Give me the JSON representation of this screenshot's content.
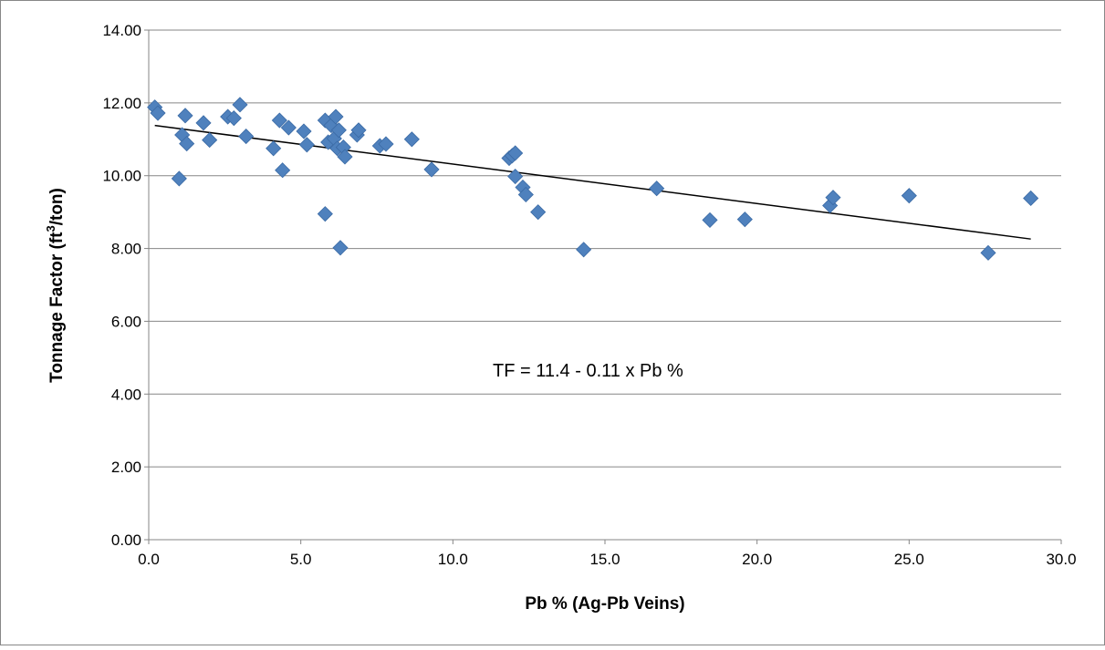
{
  "chart_data": {
    "type": "scatter",
    "xlabel": "Pb % (Ag-Pb Veins)",
    "ylabel_main": "Tonnage Factor (ft",
    "ylabel_sup": "3",
    "ylabel_end": "/ton)",
    "annotation": "TF = 11.4 - 0.11 x Pb %",
    "xlim": [
      0,
      30
    ],
    "ylim": [
      0,
      14
    ],
    "x_ticks": [
      "0.0",
      "5.0",
      "10.0",
      "15.0",
      "20.0",
      "25.0",
      "30.0"
    ],
    "y_ticks": [
      "0.00",
      "2.00",
      "4.00",
      "6.00",
      "8.00",
      "10.00",
      "12.00",
      "14.00"
    ],
    "grid": "horizontal",
    "legend": "none",
    "trendline": {
      "x": [
        0.2,
        29.0
      ],
      "y": [
        11.38,
        8.26
      ]
    },
    "points": [
      [
        0.2,
        11.88
      ],
      [
        0.3,
        11.72
      ],
      [
        1.0,
        9.92
      ],
      [
        1.1,
        11.12
      ],
      [
        1.2,
        11.65
      ],
      [
        1.25,
        10.88
      ],
      [
        1.8,
        11.45
      ],
      [
        2.0,
        10.98
      ],
      [
        2.6,
        11.62
      ],
      [
        2.8,
        11.58
      ],
      [
        3.0,
        11.95
      ],
      [
        3.2,
        11.08
      ],
      [
        4.1,
        10.75
      ],
      [
        4.3,
        11.52
      ],
      [
        4.4,
        10.15
      ],
      [
        4.6,
        11.32
      ],
      [
        5.1,
        11.22
      ],
      [
        5.2,
        10.85
      ],
      [
        5.8,
        11.52
      ],
      [
        5.8,
        8.95
      ],
      [
        5.9,
        10.92
      ],
      [
        6.0,
        11.38
      ],
      [
        6.1,
        11.02
      ],
      [
        6.15,
        11.62
      ],
      [
        6.2,
        10.75
      ],
      [
        6.25,
        11.25
      ],
      [
        6.3,
        8.02
      ],
      [
        6.4,
        10.78
      ],
      [
        6.45,
        10.52
      ],
      [
        6.85,
        11.12
      ],
      [
        6.9,
        11.25
      ],
      [
        7.6,
        10.82
      ],
      [
        7.8,
        10.87
      ],
      [
        8.65,
        11.0
      ],
      [
        9.3,
        10.17
      ],
      [
        11.85,
        10.48
      ],
      [
        11.95,
        10.55
      ],
      [
        12.05,
        10.62
      ],
      [
        12.05,
        9.98
      ],
      [
        12.3,
        9.68
      ],
      [
        12.4,
        9.48
      ],
      [
        12.8,
        9.0
      ],
      [
        14.3,
        7.97
      ],
      [
        16.7,
        9.65
      ],
      [
        18.45,
        8.78
      ],
      [
        19.6,
        8.8
      ],
      [
        22.4,
        9.18
      ],
      [
        22.5,
        9.4
      ],
      [
        25.0,
        9.45
      ],
      [
        27.6,
        7.88
      ],
      [
        29.0,
        9.38
      ]
    ],
    "colors": {
      "marker": "#4f81bd",
      "marker_stroke": "#3a6aa5",
      "grid": "#868686",
      "trendline": "#000000"
    }
  }
}
